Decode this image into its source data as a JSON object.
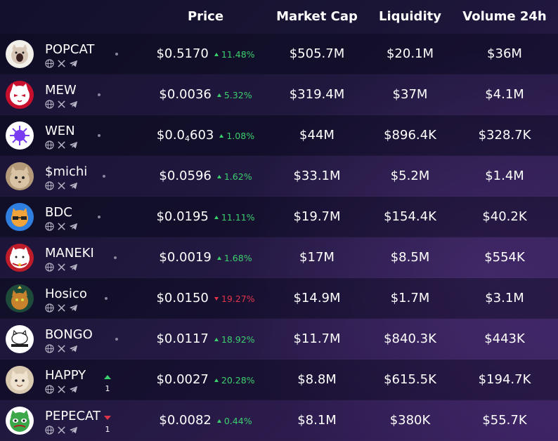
{
  "header": {
    "price": "Price",
    "market_cap": "Market Cap",
    "liquidity": "Liquidity",
    "volume": "Volume 24h"
  },
  "colors": {
    "positive": "#3ccf6e",
    "negative": "#e0344a"
  },
  "social_icons": [
    "globe-icon",
    "x-icon",
    "telegram-icon"
  ],
  "tokens": [
    {
      "name": "POPCAT",
      "price": "$0.5170",
      "change": "11.48%",
      "direction": "up",
      "market_cap": "$505.7M",
      "liquidity": "$20.1M",
      "volume": "$36M",
      "avatar": "popcat-avatar"
    },
    {
      "name": "MEW",
      "price": "$0.0036",
      "change": "5.32%",
      "direction": "up",
      "market_cap": "$319.4M",
      "liquidity": "$37M",
      "volume": "$4.1M",
      "avatar": "mew-avatar"
    },
    {
      "name": "WEN",
      "price_prefix": "$0.0",
      "price_sub": "4",
      "price_suffix": "603",
      "change": "1.08%",
      "direction": "up",
      "market_cap": "$44M",
      "liquidity": "$896.4K",
      "volume": "$328.7K",
      "avatar": "wen-avatar"
    },
    {
      "name": "$michi",
      "price": "$0.0596",
      "change": "1.62%",
      "direction": "up",
      "market_cap": "$33.1M",
      "liquidity": "$5.2M",
      "volume": "$1.4M",
      "avatar": "michi-avatar"
    },
    {
      "name": "BDC",
      "price": "$0.0195",
      "change": "11.11%",
      "direction": "up",
      "market_cap": "$19.7M",
      "liquidity": "$154.4K",
      "volume": "$40.2K",
      "avatar": "bdc-avatar"
    },
    {
      "name": "MANEKI",
      "price": "$0.0019",
      "change": "1.68%",
      "direction": "up",
      "market_cap": "$17M",
      "liquidity": "$8.5M",
      "volume": "$554K",
      "avatar": "maneki-avatar"
    },
    {
      "name": "Hosico",
      "price": "$0.0150",
      "change": "19.27%",
      "direction": "down",
      "market_cap": "$14.9M",
      "liquidity": "$1.7M",
      "volume": "$3.1M",
      "avatar": "hosico-avatar"
    },
    {
      "name": "BONGO",
      "price": "$0.0117",
      "change": "18.92%",
      "direction": "up",
      "market_cap": "$11.7M",
      "liquidity": "$840.3K",
      "volume": "$443K",
      "avatar": "bongo-avatar"
    },
    {
      "name": "HAPPY",
      "price": "$0.0027",
      "change": "20.28%",
      "direction": "up",
      "market_cap": "$8.8M",
      "liquidity": "$615.5K",
      "volume": "$194.7K",
      "avatar": "happy-avatar",
      "rank_change": "1",
      "rank_direction": "up"
    },
    {
      "name": "PEPECAT",
      "price": "$0.0082",
      "change": "0.44%",
      "direction": "up",
      "market_cap": "$8.1M",
      "liquidity": "$380K",
      "volume": "$55.7K",
      "avatar": "pepecat-avatar",
      "rank_change": "1",
      "rank_direction": "down"
    }
  ]
}
